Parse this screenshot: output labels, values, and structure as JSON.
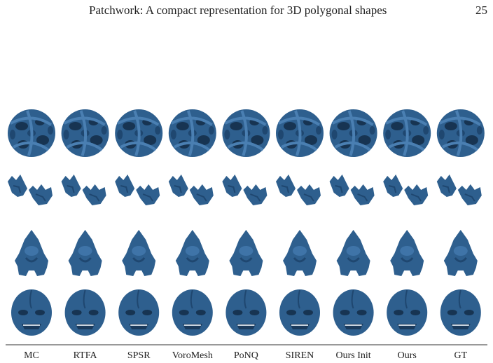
{
  "header": {
    "title": "Patchwork: A compact representation for 3D polygonal shapes",
    "page_number": "25"
  },
  "figure": {
    "columns": [
      "MC",
      "RTFA",
      "SPSR",
      "VoroMesh",
      "PoNQ",
      "SIREN",
      "Ours Init",
      "Ours",
      "GT"
    ]
  }
}
